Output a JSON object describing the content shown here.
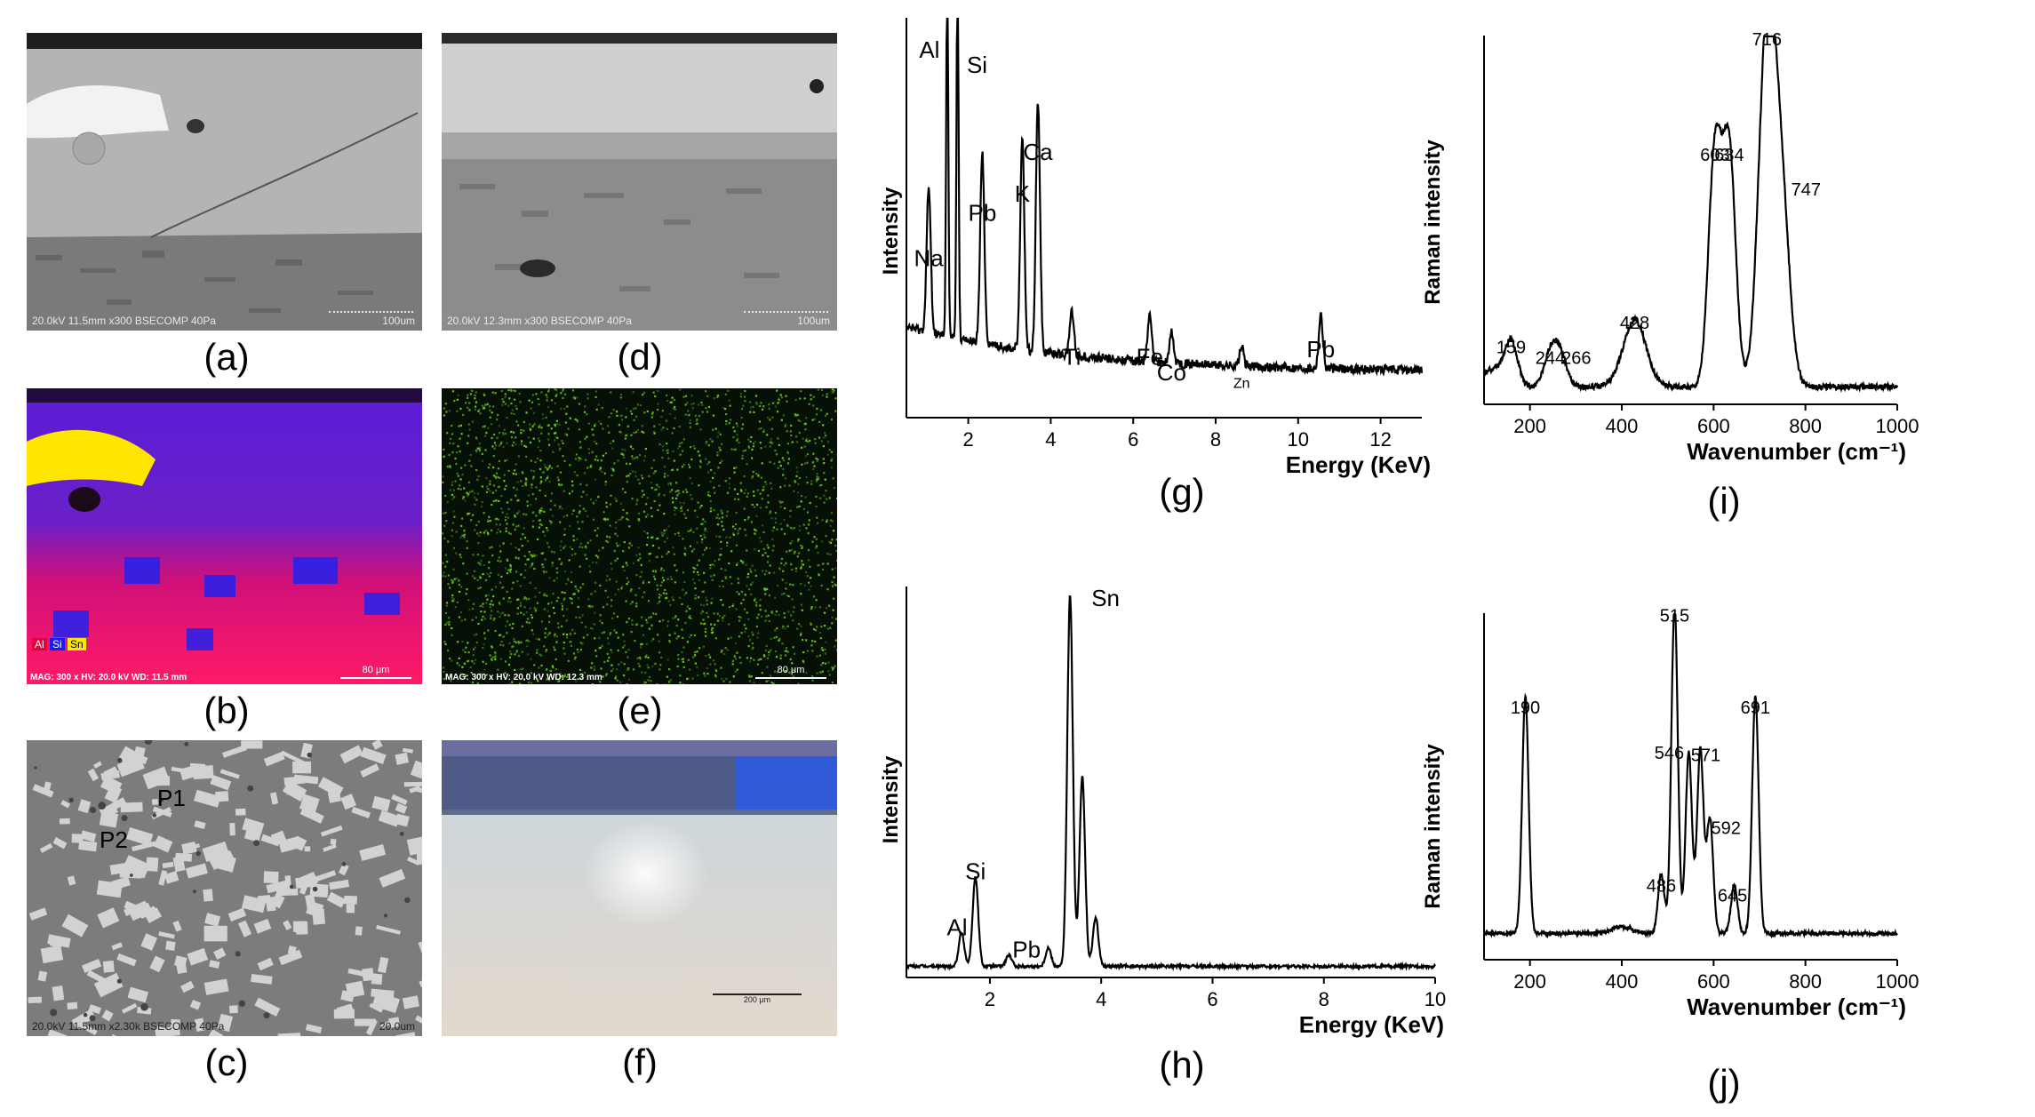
{
  "panels": {
    "a": {
      "label": "(a)",
      "info": "20.0kV 11.5mm x300 BSECOMP 40Pa",
      "scale": "100um"
    },
    "d": {
      "label": "(d)",
      "info": "20.0kV 12.3mm x300 BSECOMP 40Pa",
      "scale": "100um"
    },
    "b": {
      "label": "(b)",
      "info": "MAG: 300 x  HV: 20.0 kV  WD: 11.5 mm",
      "scale": "80 μm",
      "legend": [
        "Al",
        "Si",
        "Sn"
      ]
    },
    "e": {
      "label": "(e)",
      "info": "MAG: 300 x  HV: 20.0 kV  WD: 12.3 mm",
      "scale": "80 μm"
    },
    "c": {
      "label": "(c)",
      "info": "20.0kV 11.5mm x2.30k BSECOMP 40Pa",
      "scale": "20.0um",
      "points": [
        "P1",
        "P2"
      ]
    },
    "f": {
      "label": "(f)",
      "scale": "200 μm"
    },
    "g": {
      "label": "(g)"
    },
    "h": {
      "label": "(h)"
    },
    "i": {
      "label": "(i)"
    },
    "j": {
      "label": "(j)"
    }
  },
  "colors": {
    "al": "#e8003a",
    "si": "#1a1aff",
    "sn": "#ffe600",
    "sn_map": "#6bd11a"
  },
  "chart_data": [
    {
      "id": "g",
      "type": "line",
      "xlabel": "Energy (KeV)",
      "ylabel": "Intensity",
      "xlim": [
        0.5,
        13
      ],
      "xticks": [
        2,
        4,
        6,
        8,
        10,
        12
      ],
      "peaks": [
        {
          "label": "Na",
          "x": 1.04,
          "h": 0.38
        },
        {
          "label": "Al",
          "x": 1.49,
          "h": 1.0
        },
        {
          "label": "Si",
          "x": 1.74,
          "h": 1.0
        },
        {
          "label": "Pb",
          "x": 2.34,
          "h": 0.5
        },
        {
          "label": "K",
          "x": 3.31,
          "h": 0.55
        },
        {
          "label": "Ca",
          "x": 3.69,
          "h": 0.66
        },
        {
          "label": "Ti",
          "x": 4.51,
          "h": 0.12
        },
        {
          "label": "Fe",
          "x": 6.4,
          "h": 0.12
        },
        {
          "label": "Co",
          "x": 6.93,
          "h": 0.08
        },
        {
          "label": "Zn",
          "x": 8.63,
          "h": 0.05
        },
        {
          "label": "Pb",
          "x": 10.55,
          "h": 0.14
        }
      ]
    },
    {
      "id": "h",
      "type": "line",
      "xlabel": "Energy (KeV)",
      "ylabel": "Intensity",
      "xlim": [
        0.5,
        10
      ],
      "xticks": [
        2,
        4,
        6,
        8,
        10
      ],
      "peaks": [
        {
          "label": "Al",
          "x": 1.49,
          "h": 0.09
        },
        {
          "label": "Si",
          "x": 1.74,
          "h": 0.24
        },
        {
          "label": "Pb",
          "x": 2.34,
          "h": 0.03
        },
        {
          "label": "Sn",
          "x": 3.44,
          "h": 1.0
        },
        {
          "label": "",
          "x": 3.66,
          "h": 0.51
        },
        {
          "label": "",
          "x": 3.9,
          "h": 0.13
        },
        {
          "label": "",
          "x": 3.05,
          "h": 0.05
        }
      ]
    },
    {
      "id": "i",
      "type": "line",
      "xlabel": "Wavenumber (cm⁻¹)",
      "ylabel": "Raman intensity",
      "xlim": [
        100,
        1000
      ],
      "xticks": [
        200,
        400,
        600,
        800,
        1000
      ],
      "peaks": [
        {
          "label": "159",
          "x": 159,
          "h": 0.12
        },
        {
          "label": "244",
          "x": 244,
          "h": 0.09
        },
        {
          "label": "266",
          "x": 266,
          "h": 0.09
        },
        {
          "label": "428",
          "x": 428,
          "h": 0.19
        },
        {
          "label": "603",
          "x": 603,
          "h": 0.67
        },
        {
          "label": "634",
          "x": 634,
          "h": 0.67
        },
        {
          "label": "716",
          "x": 716,
          "h": 1.0
        },
        {
          "label": "747",
          "x": 747,
          "h": 0.52
        }
      ]
    },
    {
      "id": "j",
      "type": "line",
      "xlabel": "Wavenumber (cm⁻¹)",
      "ylabel": "Raman intensity",
      "xlim": [
        100,
        1000
      ],
      "xticks": [
        200,
        400,
        600,
        800,
        1000
      ],
      "peaks": [
        {
          "label": "190",
          "x": 190,
          "h": 0.72
        },
        {
          "label": "486",
          "x": 486,
          "h": 0.18
        },
        {
          "label": "515",
          "x": 515,
          "h": 1.0
        },
        {
          "label": "546",
          "x": 546,
          "h": 0.55
        },
        {
          "label": "571",
          "x": 571,
          "h": 0.56
        },
        {
          "label": "592",
          "x": 592,
          "h": 0.35
        },
        {
          "label": "645",
          "x": 645,
          "h": 0.15
        },
        {
          "label": "691",
          "x": 691,
          "h": 0.72
        }
      ]
    }
  ]
}
